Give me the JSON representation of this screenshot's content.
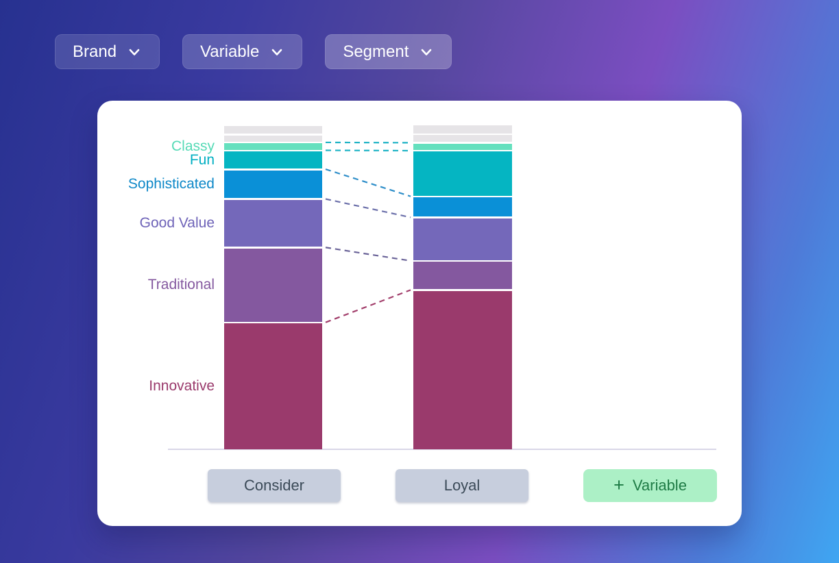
{
  "filters": [
    {
      "label": "Brand"
    },
    {
      "label": "Variable"
    },
    {
      "label": "Segment"
    }
  ],
  "chart_data": {
    "type": "stacked-bar-comparison",
    "categories": [
      "Consider",
      "Loyal"
    ],
    "units": "percent_estimated_from_pixels",
    "ylim": [
      0,
      100
    ],
    "grid": false,
    "legend_position": "left-labels",
    "axis_line_color": "#d9d6e7",
    "segments": [
      {
        "name": "",
        "kind": "unlabeled-other",
        "color": "#e6e4e7",
        "consider_pct": 2.6,
        "loyal_pct": 2.6
      },
      {
        "name": "",
        "kind": "unlabeled-other",
        "color": "#e6e4e7",
        "consider_pct": 2.0,
        "loyal_pct": 2.2
      },
      {
        "name": "Classy",
        "color": "#65e0be",
        "label_color": "#55dab6",
        "consider_pct": 2.0,
        "loyal_pct": 2.0
      },
      {
        "name": "Fun",
        "color": "#05b5c2",
        "label_color": "#00afc2",
        "consider_pct": 5.5,
        "loyal_pct": 14.1
      },
      {
        "name": "Sophisticated",
        "color": "#0a90d7",
        "label_color": "#0e88c8",
        "consider_pct": 9.0,
        "loyal_pct": 6.2
      },
      {
        "name": "Good Value",
        "color": "#7468ba",
        "label_color": "#6e63b8",
        "consider_pct": 15.0,
        "loyal_pct": 13.4
      },
      {
        "name": "Traditional",
        "color": "#84589f",
        "label_color": "#84589f",
        "consider_pct": 23.5,
        "loyal_pct": 8.8
      },
      {
        "name": "Innovative",
        "color": "#9a3a6c",
        "label_color": "#9a3a6c",
        "consider_pct": 40.4,
        "loyal_pct": 50.8
      }
    ],
    "connectors": [
      {
        "segment_index": 2,
        "edge": "top",
        "color": "#1fb3c5"
      },
      {
        "segment_index": 3,
        "edge": "top",
        "color": "#1fb3c5"
      },
      {
        "segment_index": 4,
        "edge": "top",
        "color": "#2e8ec9"
      },
      {
        "segment_index": 5,
        "edge": "top",
        "color": "#6c70aa"
      },
      {
        "segment_index": 6,
        "edge": "top",
        "color": "#6a6398"
      },
      {
        "segment_index": 7,
        "edge": "top",
        "color": "#a23e6b"
      }
    ]
  },
  "bottom_buttons": {
    "consider_label": "Consider",
    "loyal_label": "Loyal",
    "add_variable_label": "Variable",
    "plus_icon": "+"
  }
}
